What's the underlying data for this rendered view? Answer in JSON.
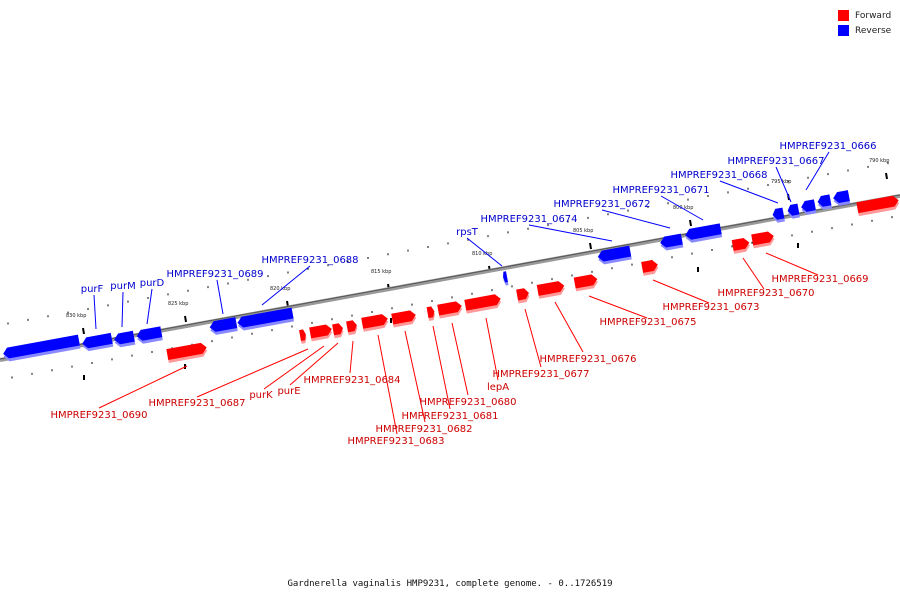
{
  "legend": {
    "forward_label": "Forward",
    "reverse_label": "Reverse",
    "forward_color": "#ff0000",
    "reverse_color": "#0000ff"
  },
  "caption": "Gardnerella vaginalis HMP9231, complete genome. - 0..1726519",
  "scale": {
    "ticks": [
      "790 kbp",
      "795 kbp",
      "800 kbp",
      "805 kbp",
      "810 kbp",
      "815 kbp",
      "820 kbp",
      "825 kbp",
      "830 kbp"
    ]
  },
  "genes": {
    "reverse": [
      {
        "name": "HMPREF9231_0666"
      },
      {
        "name": "HMPREF9231_0667"
      },
      {
        "name": "HMPREF9231_0668"
      },
      {
        "name": "HMPREF9231_0671"
      },
      {
        "name": "HMPREF9231_0672"
      },
      {
        "name": "HMPREF9231_0674"
      },
      {
        "name": "rpsT"
      },
      {
        "name": "HMPREF9231_0688"
      },
      {
        "name": "HMPREF9231_0689"
      },
      {
        "name": "purD"
      },
      {
        "name": "purM"
      },
      {
        "name": "purF"
      }
    ],
    "forward": [
      {
        "name": "HMPREF9231_0669"
      },
      {
        "name": "HMPREF9231_0670"
      },
      {
        "name": "HMPREF9231_0673"
      },
      {
        "name": "HMPREF9231_0675"
      },
      {
        "name": "HMPREF9231_0676"
      },
      {
        "name": "HMPREF9231_0677"
      },
      {
        "name": "lepA"
      },
      {
        "name": "HMPREF9231_0680"
      },
      {
        "name": "HMPREF9231_0681"
      },
      {
        "name": "HMPREF9231_0682"
      },
      {
        "name": "HMPREF9231_0683"
      },
      {
        "name": "HMPREF9231_0684"
      },
      {
        "name": "purE"
      },
      {
        "name": "purK"
      },
      {
        "name": "HMPREF9231_0687"
      },
      {
        "name": "HMPREF9231_0690"
      }
    ]
  }
}
